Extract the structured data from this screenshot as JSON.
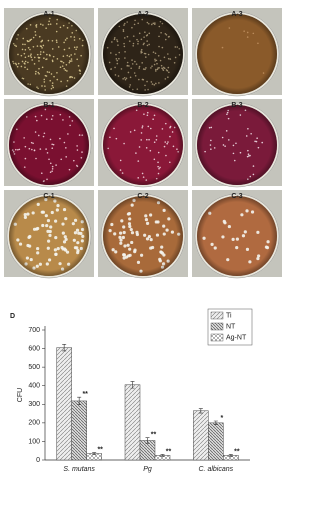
{
  "panels": [
    "A-1",
    "A-2",
    "A-3",
    "B-1",
    "B-2",
    "B-3",
    "C-1",
    "C-2",
    "C-3"
  ],
  "chart_data": {
    "type": "bar",
    "panel_label": "D",
    "y_label": "CFU",
    "categories": [
      "S. mutans",
      "Pg",
      "C. albicans"
    ],
    "series": [
      {
        "name": "Ti",
        "color": "#e0e0e0",
        "values": [
          605,
          405,
          265
        ],
        "errors": [
          18,
          18,
          12
        ]
      },
      {
        "name": "NT",
        "color": "#c8c8c8",
        "values": [
          318,
          105,
          200
        ],
        "errors": [
          20,
          15,
          10
        ],
        "significance": [
          "**",
          "**",
          "*"
        ]
      },
      {
        "name": "Ag-NT",
        "color": "#f0f0f0",
        "values": [
          35,
          25,
          25
        ],
        "errors": [
          5,
          5,
          5
        ],
        "significance": [
          "**",
          "**",
          "**"
        ]
      }
    ],
    "ylim": [
      0,
      700
    ],
    "yticks": [
      0,
      100,
      200,
      300,
      400,
      500,
      600,
      700
    ],
    "grid": false,
    "legend": "upper right"
  }
}
